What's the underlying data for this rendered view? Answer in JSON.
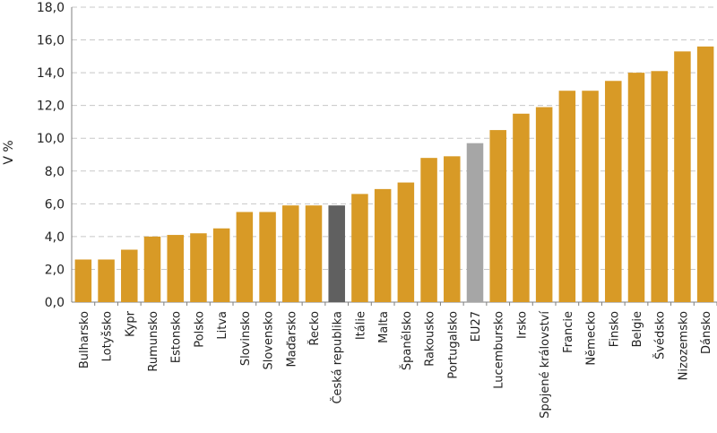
{
  "chart_data": {
    "type": "bar",
    "ylabel": "V %",
    "ylim": [
      0,
      18
    ],
    "yticks": [
      "0,0",
      "2,0",
      "4,0",
      "6,0",
      "8,0",
      "10,0",
      "12,0",
      "14,0",
      "16,0",
      "18,0"
    ],
    "grid": true,
    "categories": [
      "Bulharsko",
      "Lotyšsko",
      "Kypr",
      "Rumunsko",
      "Estonsko",
      "Polsko",
      "Litva",
      "Slovinsko",
      "Slovensko",
      "Maďarsko",
      "Řecko",
      "Česká republika",
      "Itálie",
      "Malta",
      "Španělsko",
      "Rakousko",
      "Portugalsko",
      "EU27",
      "Lucembursko",
      "Irsko",
      "Spojené království",
      "Francie",
      "Německo",
      "Finsko",
      "Belgie",
      "Švédsko",
      "Nizozemsko",
      "Dánsko"
    ],
    "values": [
      2.6,
      2.6,
      3.2,
      4.0,
      4.1,
      4.2,
      4.5,
      5.5,
      5.5,
      5.9,
      5.9,
      5.9,
      6.6,
      6.9,
      7.3,
      8.8,
      8.9,
      9.7,
      10.5,
      11.5,
      11.9,
      12.9,
      12.9,
      13.5,
      14.0,
      14.1,
      15.3,
      15.6
    ],
    "colors": {
      "default": "#D89A26",
      "Česká republika": "#606060",
      "EU27": "#A6A6A6"
    }
  }
}
